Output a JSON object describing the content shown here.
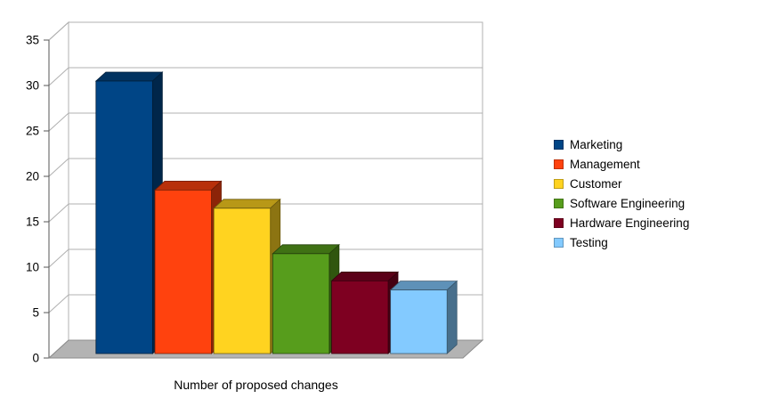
{
  "chart_data": {
    "type": "bar",
    "style": "3d-column",
    "categories": [
      "Marketing",
      "Management",
      "Customer",
      "Software Engineering",
      "Hardware Engineering",
      "Testing"
    ],
    "values": [
      30,
      18,
      16,
      11,
      8,
      7
    ],
    "colors": [
      "#004586",
      "#FF420E",
      "#FFD320",
      "#579D1C",
      "#7E0021",
      "#83CAFF"
    ],
    "title": "",
    "xlabel": "Number of proposed changes",
    "ylabel": "",
    "ylim": [
      0,
      35
    ],
    "ytick_step": 5,
    "yticks": [
      0,
      5,
      10,
      15,
      20,
      25,
      30,
      35
    ],
    "grid": true,
    "legend_position": "right",
    "background": "#ffffff",
    "wall_color": "#ffffff",
    "floor_color": "#b3b3b3",
    "gridline_color": "#b0b0b0"
  }
}
